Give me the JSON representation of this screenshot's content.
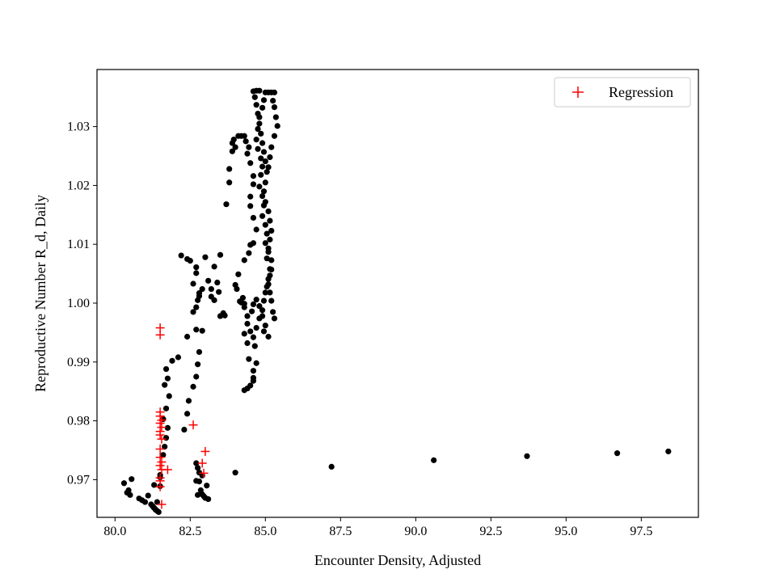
{
  "chart_data": {
    "type": "scatter",
    "title": "",
    "xlabel": "Encounter Density, Adjusted",
    "ylabel": "Reproductive Number R_d, Daily",
    "xlim": [
      79.4,
      99.4
    ],
    "ylim": [
      0.9636,
      1.0397
    ],
    "xticks": [
      80.0,
      82.5,
      85.0,
      87.5,
      90.0,
      92.5,
      95.0,
      97.5
    ],
    "xtick_labels": [
      "80.0",
      "82.5",
      "85.0",
      "87.5",
      "90.0",
      "92.5",
      "95.0",
      "97.5"
    ],
    "yticks": [
      0.97,
      0.98,
      0.99,
      1.0,
      1.01,
      1.02,
      1.03
    ],
    "ytick_labels": [
      "0.97",
      "0.98",
      "0.99",
      "1.00",
      "1.01",
      "1.02",
      "1.03"
    ],
    "grid": false,
    "legend_position": "upper right",
    "colors": {
      "observed": "#000000",
      "regression": "#ff0000"
    },
    "series": [
      {
        "marker": "dot",
        "points": [
          [
            80.3,
            0.9694
          ],
          [
            80.4,
            0.9678
          ],
          [
            80.45,
            0.9682
          ],
          [
            80.5,
            0.9674
          ],
          [
            80.55,
            0.9701
          ],
          [
            80.8,
            0.9668
          ],
          [
            80.9,
            0.9665
          ],
          [
            81.0,
            0.9662
          ],
          [
            81.1,
            0.9673
          ],
          [
            81.2,
            0.9658
          ],
          [
            81.25,
            0.9655
          ],
          [
            81.3,
            0.9652
          ],
          [
            81.3,
            0.9691
          ],
          [
            81.35,
            0.9649
          ],
          [
            81.4,
            0.9647
          ],
          [
            81.45,
            0.9645
          ],
          [
            81.4,
            0.9662
          ],
          [
            81.5,
            0.9689
          ],
          [
            81.5,
            0.9704
          ],
          [
            81.5,
            0.9708
          ],
          [
            81.6,
            0.9742
          ],
          [
            81.65,
            0.9756
          ],
          [
            81.7,
            0.9771
          ],
          [
            81.75,
            0.9788
          ],
          [
            81.6,
            0.9803
          ],
          [
            81.7,
            0.9821
          ],
          [
            81.8,
            0.9842
          ],
          [
            81.65,
            0.9861
          ],
          [
            81.75,
            0.9872
          ],
          [
            81.7,
            0.9888
          ],
          [
            81.6,
            0.9803
          ],
          [
            81.9,
            0.9902
          ],
          [
            82.1,
            0.9908
          ],
          [
            82.3,
            0.9785
          ],
          [
            82.4,
            0.9812
          ],
          [
            82.45,
            0.9834
          ],
          [
            82.6,
            0.9858
          ],
          [
            82.7,
            0.9875
          ],
          [
            82.75,
            0.9896
          ],
          [
            82.8,
            0.9917
          ],
          [
            82.4,
            0.9943
          ],
          [
            82.7,
            0.9955
          ],
          [
            82.9,
            0.9953
          ],
          [
            82.6,
            0.9985
          ],
          [
            82.7,
            0.9993
          ],
          [
            82.75,
            1.0005
          ],
          [
            82.8,
            1.0012
          ],
          [
            82.8,
            1.0017
          ],
          [
            82.9,
            1.0024
          ],
          [
            82.2,
            1.0081
          ],
          [
            82.4,
            1.0075
          ],
          [
            82.5,
            1.0072
          ],
          [
            82.7,
            1.0061
          ],
          [
            82.7,
            1.0051
          ],
          [
            82.6,
            1.0033
          ],
          [
            83.0,
            1.0078
          ],
          [
            83.1,
            1.0038
          ],
          [
            83.2,
            1.0024
          ],
          [
            83.3,
            1.0062
          ],
          [
            83.4,
            1.0035
          ],
          [
            83.45,
            1.0019
          ],
          [
            83.3,
            1.0005
          ],
          [
            83.2,
            1.0011
          ],
          [
            83.5,
            0.9978
          ],
          [
            83.6,
            0.9983
          ],
          [
            83.65,
            0.9979
          ],
          [
            83.5,
            1.0082
          ],
          [
            83.7,
            1.0168
          ],
          [
            83.8,
            1.0205
          ],
          [
            83.8,
            1.0228
          ],
          [
            83.9,
            1.0258
          ],
          [
            83.9,
            1.0272
          ],
          [
            83.95,
            1.0278
          ],
          [
            84.0,
            1.0265
          ],
          [
            84.1,
            1.0284
          ],
          [
            84.2,
            1.0284
          ],
          [
            84.3,
            1.0284
          ],
          [
            84.35,
            1.0275
          ],
          [
            84.4,
            1.0254
          ],
          [
            84.45,
            1.0265
          ],
          [
            84.5,
            1.0238
          ],
          [
            84.6,
            1.0216
          ],
          [
            84.6,
            1.0202
          ],
          [
            84.5,
            1.0181
          ],
          [
            84.5,
            1.0165
          ],
          [
            84.6,
            1.0145
          ],
          [
            84.7,
            1.0125
          ],
          [
            84.6,
            1.0102
          ],
          [
            84.5,
            1.0099
          ],
          [
            84.45,
            1.0085
          ],
          [
            84.3,
            1.0073
          ],
          [
            84.1,
            1.0049
          ],
          [
            84.0,
            1.0031
          ],
          [
            84.05,
            1.0024
          ],
          [
            84.15,
            1.0003
          ],
          [
            84.2,
            1.0001
          ],
          [
            84.3,
            0.9993
          ],
          [
            84.4,
            0.9965
          ],
          [
            84.5,
            0.9952
          ],
          [
            84.6,
            0.9942
          ],
          [
            84.3,
            0.9948
          ],
          [
            84.4,
            0.9932
          ],
          [
            84.45,
            0.9905
          ],
          [
            84.6,
            0.9885
          ],
          [
            84.6,
            0.9873
          ],
          [
            84.5,
            0.986
          ],
          [
            84.3,
            0.9852
          ],
          [
            84.4,
            0.9855
          ],
          [
            84.6,
            0.9868
          ],
          [
            84.7,
            0.9898
          ],
          [
            84.65,
            0.9927
          ],
          [
            84.7,
            0.9958
          ],
          [
            84.8,
            0.9974
          ],
          [
            84.9,
            0.9988
          ],
          [
            84.95,
            1.0004
          ],
          [
            85.0,
            1.0018
          ],
          [
            85.1,
            1.0032
          ],
          [
            85.15,
            1.0047
          ],
          [
            85.2,
            1.0057
          ],
          [
            85.2,
            1.0073
          ],
          [
            85.1,
            1.0087
          ],
          [
            85.0,
            1.0102
          ],
          [
            85.05,
            1.0118
          ],
          [
            85.0,
            1.0133
          ],
          [
            84.9,
            1.0148
          ],
          [
            84.95,
            1.0166
          ],
          [
            84.9,
            1.0182
          ],
          [
            84.8,
            1.0198
          ],
          [
            84.85,
            1.0218
          ],
          [
            84.9,
            1.0232
          ],
          [
            84.85,
            1.0246
          ],
          [
            84.75,
            1.0262
          ],
          [
            84.7,
            1.0278
          ],
          [
            84.75,
            1.0296
          ],
          [
            84.8,
            1.0316
          ],
          [
            84.9,
            1.0332
          ],
          [
            84.95,
            1.0345
          ],
          [
            85.0,
            1.0358
          ],
          [
            84.8,
            1.0361
          ],
          [
            84.7,
            1.0361
          ],
          [
            84.6,
            1.036
          ],
          [
            84.65,
            1.035
          ],
          [
            84.7,
            1.0337
          ],
          [
            84.75,
            1.0322
          ],
          [
            84.8,
            1.0305
          ],
          [
            84.85,
            1.0288
          ],
          [
            84.9,
            1.0272
          ],
          [
            84.95,
            1.0257
          ],
          [
            85.0,
            1.0241
          ],
          [
            85.05,
            1.0223
          ],
          [
            85.0,
            1.0205
          ],
          [
            84.95,
            1.019
          ],
          [
            85.0,
            1.0172
          ],
          [
            85.1,
            1.0156
          ],
          [
            85.15,
            1.014
          ],
          [
            85.2,
            1.0123
          ],
          [
            85.15,
            1.0108
          ],
          [
            85.1,
            1.0093
          ],
          [
            85.05,
            1.0076
          ],
          [
            85.15,
            1.0058
          ],
          [
            85.1,
            1.0041
          ],
          [
            85.05,
            1.0028
          ],
          [
            85.15,
            1.0018
          ],
          [
            85.2,
            1.0004
          ],
          [
            85.25,
            0.9985
          ],
          [
            85.3,
            0.9974
          ],
          [
            85.0,
            0.9962
          ],
          [
            84.95,
            0.9952
          ],
          [
            85.1,
            0.9943
          ],
          [
            84.9,
            0.9978
          ],
          [
            84.8,
            0.9995
          ],
          [
            84.7,
            1.0006
          ],
          [
            84.6,
            0.9998
          ],
          [
            84.55,
            0.9986
          ],
          [
            84.4,
            0.9978
          ],
          [
            84.3,
            0.9999
          ],
          [
            84.25,
            1.0009
          ],
          [
            85.1,
            1.0358
          ],
          [
            85.2,
            1.0358
          ],
          [
            85.25,
            1.0344
          ],
          [
            85.3,
            1.0333
          ],
          [
            85.35,
            1.0316
          ],
          [
            85.4,
            1.0301
          ],
          [
            85.3,
            1.0284
          ],
          [
            85.2,
            1.0265
          ],
          [
            85.15,
            1.0248
          ],
          [
            85.1,
            1.0231
          ],
          [
            85.3,
            1.0358
          ],
          [
            82.9,
            0.9707
          ],
          [
            82.8,
            0.9697
          ],
          [
            82.85,
            0.9682
          ],
          [
            82.9,
            0.9675
          ],
          [
            82.95,
            0.9672
          ],
          [
            83.0,
            0.9669
          ],
          [
            83.1,
            0.9667
          ],
          [
            83.05,
            0.969
          ],
          [
            82.7,
            0.9728
          ],
          [
            82.75,
            0.972
          ],
          [
            82.8,
            0.9712
          ],
          [
            82.7,
            0.9698
          ],
          [
            82.75,
            0.9674
          ],
          [
            84.0,
            0.9712
          ],
          [
            87.2,
            0.9722
          ],
          [
            90.6,
            0.9733
          ],
          [
            93.7,
            0.974
          ],
          [
            96.7,
            0.9745
          ],
          [
            98.4,
            0.9748
          ]
        ]
      },
      {
        "name": "Regression",
        "marker": "plus",
        "points": [
          [
            81.5,
            0.9958
          ],
          [
            81.5,
            0.9946
          ],
          [
            81.5,
            0.9815
          ],
          [
            81.5,
            0.9808
          ],
          [
            81.55,
            0.9801
          ],
          [
            81.5,
            0.9796
          ],
          [
            81.55,
            0.9789
          ],
          [
            81.5,
            0.9782
          ],
          [
            81.5,
            0.9776
          ],
          [
            81.55,
            0.9769
          ],
          [
            81.5,
            0.9752
          ],
          [
            81.5,
            0.9738
          ],
          [
            81.55,
            0.973
          ],
          [
            81.5,
            0.9724
          ],
          [
            81.55,
            0.9717
          ],
          [
            81.5,
            0.9703
          ],
          [
            81.5,
            0.9698
          ],
          [
            81.5,
            0.9688
          ],
          [
            81.55,
            0.9658
          ],
          [
            81.75,
            0.9717
          ],
          [
            82.6,
            0.9793
          ],
          [
            83.0,
            0.9748
          ],
          [
            82.9,
            0.9728
          ],
          [
            82.95,
            0.9711
          ]
        ]
      }
    ]
  }
}
